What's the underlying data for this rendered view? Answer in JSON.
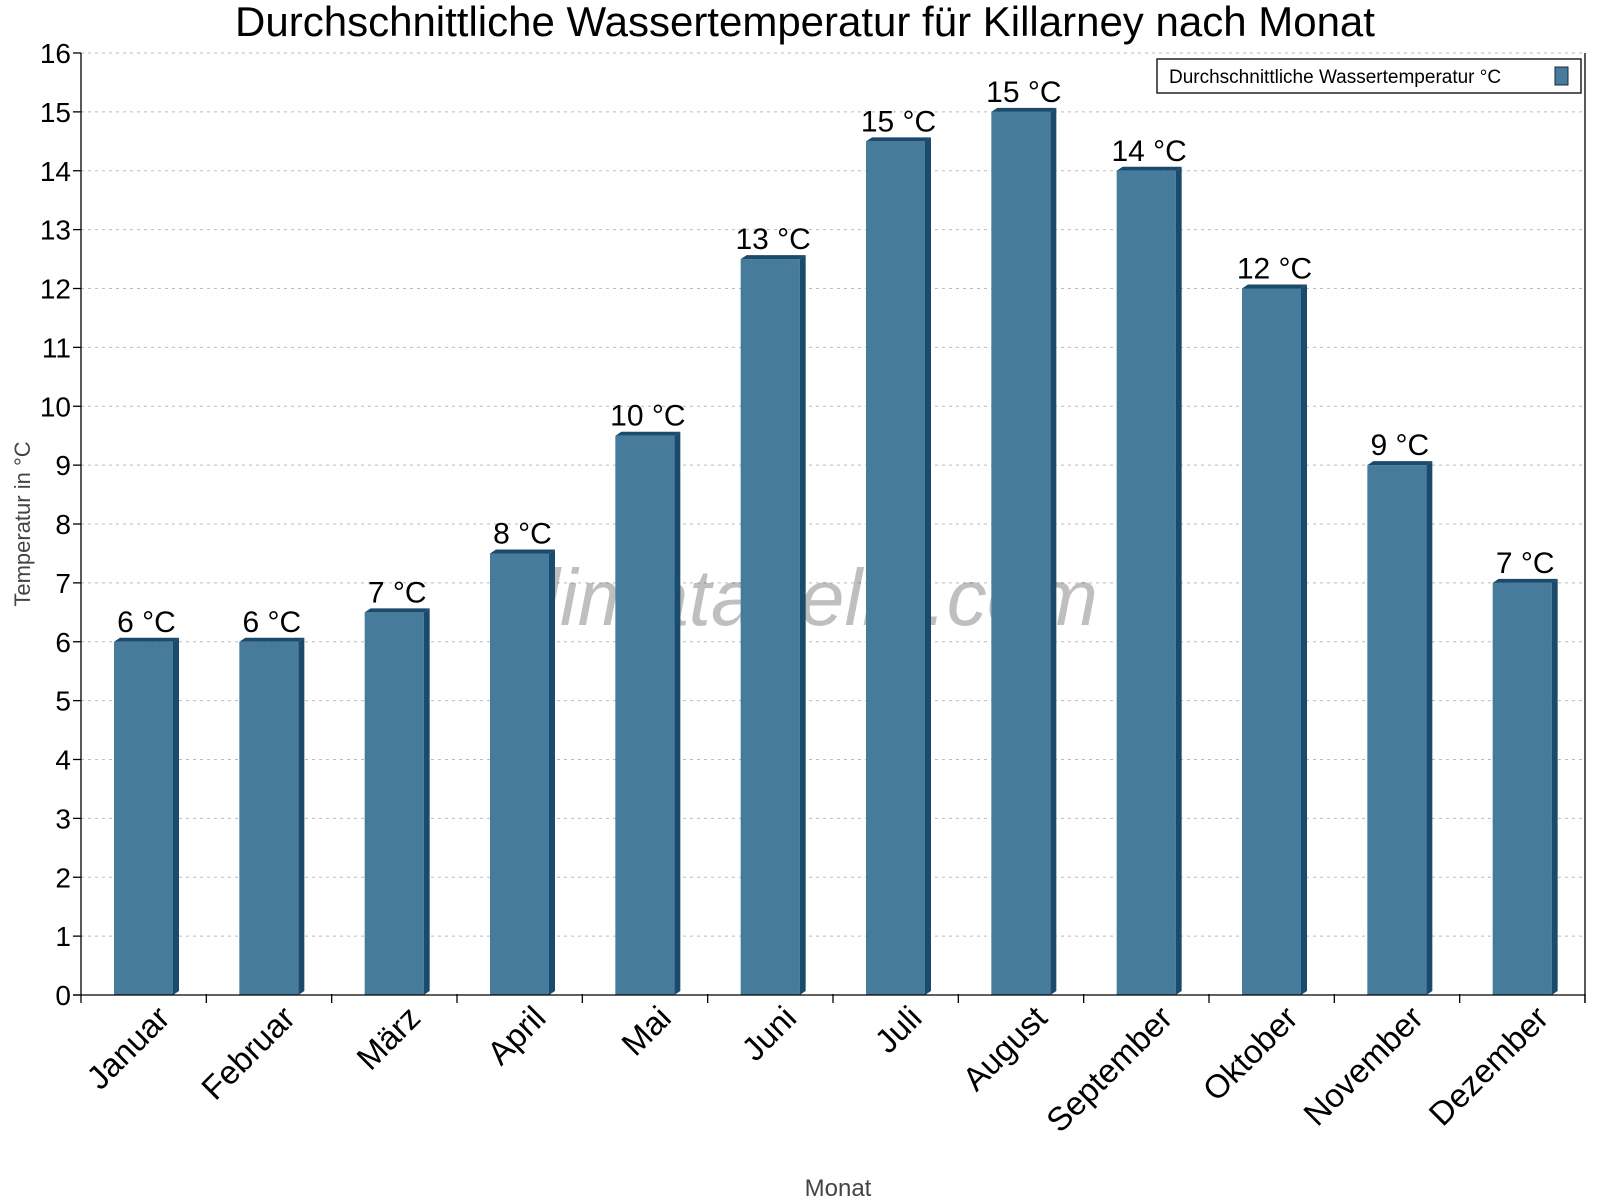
{
  "chart_data": {
    "type": "bar",
    "title": "Durchschnittliche Wassertemperatur für Killarney nach Monat",
    "xlabel": "Monat",
    "ylabel": "Temperatur in °C",
    "categories": [
      "Januar",
      "Februar",
      "März",
      "April",
      "Mai",
      "Juni",
      "Juli",
      "August",
      "September",
      "Oktober",
      "November",
      "Dezember"
    ],
    "series": [
      {
        "name": "Durchschnittliche Wassertemperatur °C",
        "values": [
          6,
          6,
          6.5,
          7.5,
          9.5,
          12.5,
          14.5,
          15,
          14,
          12,
          9,
          7
        ],
        "data_labels": [
          "6 °C",
          "6 °C",
          "7 °C",
          "8 °C",
          "10 °C",
          "13 °C",
          "15 °C",
          "15 °C",
          "14 °C",
          "12 °C",
          "9 °C",
          "7 °C"
        ]
      }
    ],
    "ylim": [
      0,
      16
    ],
    "yticks": [
      0,
      1,
      2,
      3,
      4,
      5,
      6,
      7,
      8,
      9,
      10,
      11,
      12,
      13,
      14,
      15,
      16
    ],
    "grid": true,
    "legend": "top-right",
    "colors": {
      "bar": "#467b9c",
      "bar_side": "#1a4a6c"
    },
    "watermark": "klimatabelle.com"
  }
}
